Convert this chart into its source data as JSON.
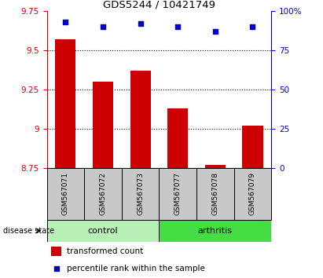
{
  "title": "GDS5244 / 10421749",
  "categories": [
    "GSM567071",
    "GSM567072",
    "GSM567073",
    "GSM567077",
    "GSM567078",
    "GSM567079"
  ],
  "bar_values": [
    9.57,
    9.3,
    9.37,
    9.13,
    8.77,
    9.02
  ],
  "scatter_values": [
    93,
    90,
    92,
    90,
    87,
    90
  ],
  "ylim_left": [
    8.75,
    9.75
  ],
  "ylim_right": [
    0,
    100
  ],
  "yticks_left": [
    8.75,
    9.0,
    9.25,
    9.5,
    9.75
  ],
  "yticks_right": [
    0,
    25,
    50,
    75,
    100
  ],
  "ytick_labels_left": [
    "8.75",
    "9",
    "9.25",
    "9.5",
    "9.75"
  ],
  "ytick_labels_right": [
    "0",
    "25",
    "50",
    "75",
    "100%"
  ],
  "grid_lines": [
    9.0,
    9.25,
    9.5
  ],
  "bar_color": "#cc0000",
  "scatter_color": "#0000cc",
  "control_color": "#b8f0b8",
  "arthritis_color": "#44dd44",
  "tick_area_color": "#c8c8c8",
  "n_control": 3,
  "n_arthritis": 3,
  "legend_bar_label": "transformed count",
  "legend_scatter_label": "percentile rank within the sample",
  "disease_state_label": "disease state",
  "control_label": "control",
  "arthritis_label": "arthritis"
}
